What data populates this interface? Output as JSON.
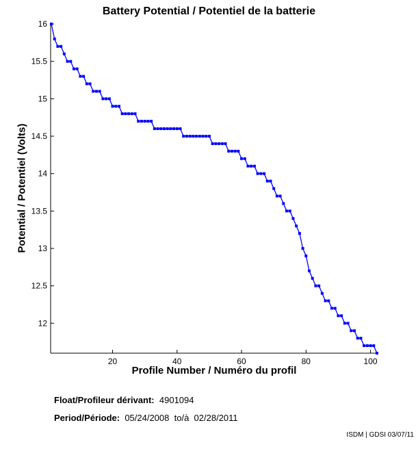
{
  "chart_data": {
    "type": "line",
    "title": "Battery Potential / Potentiel de la batterie",
    "xlabel": "Profile Number / Numéro du profil",
    "ylabel": "Potential / Potentiel (Volts)",
    "xlim": [
      1,
      102
    ],
    "ylim": [
      11.6,
      16
    ],
    "xticks": [
      20,
      40,
      60,
      80,
      100
    ],
    "yticks": [
      12,
      12.5,
      13,
      13.5,
      14,
      14.5,
      15,
      15.5,
      16
    ],
    "grid": false,
    "color": "#0000ff",
    "values": [
      16.0,
      15.8,
      15.7,
      15.7,
      15.6,
      15.5,
      15.5,
      15.4,
      15.4,
      15.3,
      15.3,
      15.2,
      15.2,
      15.1,
      15.1,
      15.1,
      15.0,
      15.0,
      15.0,
      14.9,
      14.9,
      14.9,
      14.8,
      14.8,
      14.8,
      14.8,
      14.8,
      14.7,
      14.7,
      14.7,
      14.7,
      14.7,
      14.6,
      14.6,
      14.6,
      14.6,
      14.6,
      14.6,
      14.6,
      14.6,
      14.6,
      14.5,
      14.5,
      14.5,
      14.5,
      14.5,
      14.5,
      14.5,
      14.5,
      14.5,
      14.4,
      14.4,
      14.4,
      14.4,
      14.4,
      14.3,
      14.3,
      14.3,
      14.3,
      14.2,
      14.2,
      14.1,
      14.1,
      14.1,
      14.0,
      14.0,
      14.0,
      13.9,
      13.9,
      13.8,
      13.7,
      13.7,
      13.6,
      13.5,
      13.5,
      13.4,
      13.3,
      13.2,
      13.0,
      12.9,
      12.7,
      12.6,
      12.5,
      12.5,
      12.4,
      12.3,
      12.3,
      12.2,
      12.2,
      12.1,
      12.1,
      12.0,
      12.0,
      11.9,
      11.9,
      11.8,
      11.8,
      11.7,
      11.7,
      11.7,
      11.7,
      11.6
    ]
  },
  "footer": {
    "float_label": "Float/Profileur dérivant:",
    "float_value": "4901094",
    "period_label": "Period/Période:",
    "period_start": "05/24/2008",
    "period_sep": "to/à",
    "period_end": "02/28/2011",
    "credit": "ISDM | GDSI 03/07/11"
  }
}
